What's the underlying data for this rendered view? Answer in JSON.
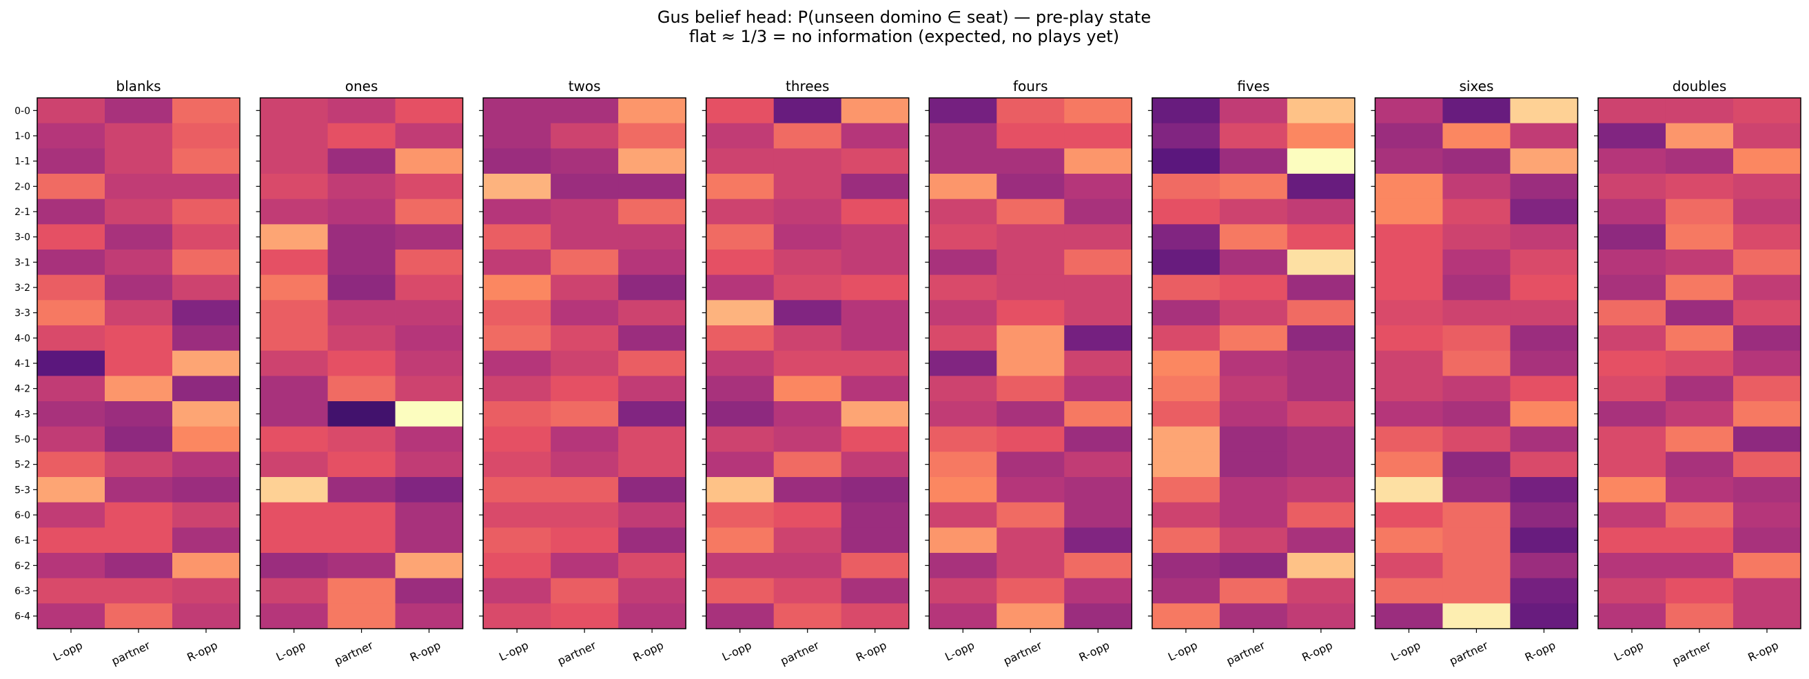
{
  "figure": {
    "title_line1": "Gus belief head: P(unseen domino ∈ seat) — pre-play state",
    "title_line2": "flat ≈ 1/3 = no information (expected, no plays yet)"
  },
  "colors": {
    "colormap": "magma",
    "frame": "#000000",
    "background": "#ffffff"
  },
  "chart_data": {
    "type": "heatmap",
    "colormap": "magma",
    "value_range": [
      0.15,
      0.55
    ],
    "rows": [
      "0-0",
      "1-0",
      "1-1",
      "2-0",
      "2-1",
      "3-0",
      "3-1",
      "3-2",
      "3-3",
      "4-0",
      "4-1",
      "4-2",
      "4-3",
      "5-0",
      "5-2",
      "5-3",
      "6-0",
      "6-1",
      "6-2",
      "6-3",
      "6-4"
    ],
    "columns": [
      "L-opp",
      "partner",
      "R-opp"
    ],
    "panels": [
      {
        "title": "blanks",
        "values": [
          [
            0.33,
            0.3,
            0.37
          ],
          [
            0.31,
            0.33,
            0.36
          ],
          [
            0.3,
            0.33,
            0.37
          ],
          [
            0.37,
            0.32,
            0.32
          ],
          [
            0.3,
            0.33,
            0.36
          ],
          [
            0.35,
            0.3,
            0.34
          ],
          [
            0.3,
            0.32,
            0.37
          ],
          [
            0.36,
            0.3,
            0.33
          ],
          [
            0.38,
            0.33,
            0.27
          ],
          [
            0.34,
            0.35,
            0.29
          ],
          [
            0.24,
            0.35,
            0.41
          ],
          [
            0.32,
            0.4,
            0.28
          ],
          [
            0.3,
            0.29,
            0.41
          ],
          [
            0.32,
            0.28,
            0.39
          ],
          [
            0.36,
            0.33,
            0.31
          ],
          [
            0.41,
            0.3,
            0.29
          ],
          [
            0.32,
            0.35,
            0.33
          ],
          [
            0.35,
            0.35,
            0.3
          ],
          [
            0.31,
            0.29,
            0.4
          ],
          [
            0.34,
            0.34,
            0.33
          ],
          [
            0.31,
            0.37,
            0.32
          ]
        ]
      },
      {
        "title": "ones",
        "values": [
          [
            0.33,
            0.32,
            0.35
          ],
          [
            0.33,
            0.35,
            0.32
          ],
          [
            0.33,
            0.29,
            0.4
          ],
          [
            0.34,
            0.32,
            0.34
          ],
          [
            0.32,
            0.31,
            0.37
          ],
          [
            0.41,
            0.29,
            0.3
          ],
          [
            0.35,
            0.29,
            0.36
          ],
          [
            0.38,
            0.28,
            0.34
          ],
          [
            0.36,
            0.32,
            0.32
          ],
          [
            0.36,
            0.33,
            0.31
          ],
          [
            0.33,
            0.35,
            0.32
          ],
          [
            0.3,
            0.37,
            0.33
          ],
          [
            0.3,
            0.22,
            0.48
          ],
          [
            0.35,
            0.34,
            0.31
          ],
          [
            0.33,
            0.35,
            0.32
          ],
          [
            0.44,
            0.29,
            0.27
          ],
          [
            0.35,
            0.35,
            0.3
          ],
          [
            0.35,
            0.35,
            0.3
          ],
          [
            0.29,
            0.3,
            0.41
          ],
          [
            0.33,
            0.38,
            0.29
          ],
          [
            0.31,
            0.38,
            0.31
          ]
        ]
      },
      {
        "title": "twos",
        "values": [
          [
            0.3,
            0.3,
            0.4
          ],
          [
            0.3,
            0.33,
            0.37
          ],
          [
            0.29,
            0.3,
            0.41
          ],
          [
            0.42,
            0.29,
            0.29
          ],
          [
            0.31,
            0.32,
            0.37
          ],
          [
            0.36,
            0.32,
            0.32
          ],
          [
            0.32,
            0.37,
            0.31
          ],
          [
            0.39,
            0.33,
            0.28
          ],
          [
            0.36,
            0.31,
            0.33
          ],
          [
            0.37,
            0.34,
            0.29
          ],
          [
            0.31,
            0.33,
            0.36
          ],
          [
            0.33,
            0.35,
            0.32
          ],
          [
            0.36,
            0.37,
            0.27
          ],
          [
            0.35,
            0.31,
            0.34
          ],
          [
            0.34,
            0.32,
            0.34
          ],
          [
            0.36,
            0.36,
            0.28
          ],
          [
            0.34,
            0.34,
            0.32
          ],
          [
            0.36,
            0.35,
            0.29
          ],
          [
            0.35,
            0.31,
            0.34
          ],
          [
            0.32,
            0.36,
            0.32
          ],
          [
            0.34,
            0.35,
            0.31
          ]
        ]
      },
      {
        "title": "threes",
        "values": [
          [
            0.35,
            0.25,
            0.4
          ],
          [
            0.32,
            0.37,
            0.31
          ],
          [
            0.33,
            0.33,
            0.34
          ],
          [
            0.38,
            0.33,
            0.29
          ],
          [
            0.33,
            0.32,
            0.35
          ],
          [
            0.37,
            0.31,
            0.32
          ],
          [
            0.35,
            0.33,
            0.32
          ],
          [
            0.31,
            0.34,
            0.35
          ],
          [
            0.42,
            0.27,
            0.31
          ],
          [
            0.36,
            0.33,
            0.31
          ],
          [
            0.32,
            0.34,
            0.34
          ],
          [
            0.3,
            0.39,
            0.31
          ],
          [
            0.28,
            0.31,
            0.41
          ],
          [
            0.33,
            0.32,
            0.35
          ],
          [
            0.31,
            0.37,
            0.32
          ],
          [
            0.43,
            0.29,
            0.28
          ],
          [
            0.36,
            0.35,
            0.29
          ],
          [
            0.38,
            0.33,
            0.29
          ],
          [
            0.32,
            0.32,
            0.36
          ],
          [
            0.36,
            0.34,
            0.3
          ],
          [
            0.3,
            0.36,
            0.34
          ]
        ]
      },
      {
        "title": "fours",
        "values": [
          [
            0.26,
            0.36,
            0.38
          ],
          [
            0.3,
            0.35,
            0.35
          ],
          [
            0.3,
            0.3,
            0.4
          ],
          [
            0.4,
            0.29,
            0.31
          ],
          [
            0.33,
            0.37,
            0.3
          ],
          [
            0.34,
            0.33,
            0.33
          ],
          [
            0.3,
            0.33,
            0.37
          ],
          [
            0.34,
            0.33,
            0.33
          ],
          [
            0.32,
            0.35,
            0.33
          ],
          [
            0.34,
            0.4,
            0.26
          ],
          [
            0.27,
            0.4,
            0.33
          ],
          [
            0.33,
            0.36,
            0.31
          ],
          [
            0.32,
            0.3,
            0.38
          ],
          [
            0.36,
            0.35,
            0.29
          ],
          [
            0.38,
            0.3,
            0.32
          ],
          [
            0.39,
            0.31,
            0.3
          ],
          [
            0.33,
            0.37,
            0.3
          ],
          [
            0.4,
            0.33,
            0.27
          ],
          [
            0.3,
            0.33,
            0.37
          ],
          [
            0.33,
            0.36,
            0.31
          ],
          [
            0.31,
            0.4,
            0.29
          ]
        ]
      },
      {
        "title": "fives",
        "values": [
          [
            0.25,
            0.32,
            0.43
          ],
          [
            0.27,
            0.34,
            0.39
          ],
          [
            0.24,
            0.29,
            0.47
          ],
          [
            0.37,
            0.38,
            0.25
          ],
          [
            0.35,
            0.33,
            0.32
          ],
          [
            0.27,
            0.38,
            0.35
          ],
          [
            0.25,
            0.3,
            0.45
          ],
          [
            0.36,
            0.35,
            0.29
          ],
          [
            0.3,
            0.33,
            0.37
          ],
          [
            0.34,
            0.38,
            0.28
          ],
          [
            0.39,
            0.31,
            0.3
          ],
          [
            0.38,
            0.32,
            0.3
          ],
          [
            0.36,
            0.31,
            0.33
          ],
          [
            0.41,
            0.29,
            0.3
          ],
          [
            0.41,
            0.29,
            0.3
          ],
          [
            0.37,
            0.31,
            0.32
          ],
          [
            0.33,
            0.31,
            0.36
          ],
          [
            0.37,
            0.33,
            0.3
          ],
          [
            0.29,
            0.28,
            0.43
          ],
          [
            0.3,
            0.37,
            0.33
          ],
          [
            0.38,
            0.3,
            0.32
          ]
        ]
      },
      {
        "title": "sixes",
        "values": [
          [
            0.31,
            0.25,
            0.44
          ],
          [
            0.29,
            0.39,
            0.32
          ],
          [
            0.3,
            0.29,
            0.41
          ],
          [
            0.39,
            0.32,
            0.29
          ],
          [
            0.39,
            0.34,
            0.27
          ],
          [
            0.35,
            0.33,
            0.32
          ],
          [
            0.35,
            0.31,
            0.34
          ],
          [
            0.35,
            0.3,
            0.35
          ],
          [
            0.34,
            0.33,
            0.33
          ],
          [
            0.35,
            0.36,
            0.29
          ],
          [
            0.33,
            0.37,
            0.3
          ],
          [
            0.33,
            0.32,
            0.35
          ],
          [
            0.31,
            0.3,
            0.39
          ],
          [
            0.36,
            0.34,
            0.3
          ],
          [
            0.38,
            0.28,
            0.34
          ],
          [
            0.45,
            0.29,
            0.26
          ],
          [
            0.35,
            0.37,
            0.28
          ],
          [
            0.38,
            0.37,
            0.25
          ],
          [
            0.34,
            0.37,
            0.29
          ],
          [
            0.37,
            0.37,
            0.26
          ],
          [
            0.29,
            0.46,
            0.25
          ]
        ]
      },
      {
        "title": "doubles",
        "values": [
          [
            0.33,
            0.33,
            0.34
          ],
          [
            0.27,
            0.4,
            0.33
          ],
          [
            0.31,
            0.3,
            0.39
          ],
          [
            0.33,
            0.34,
            0.33
          ],
          [
            0.31,
            0.37,
            0.32
          ],
          [
            0.28,
            0.38,
            0.34
          ],
          [
            0.31,
            0.32,
            0.37
          ],
          [
            0.3,
            0.38,
            0.32
          ],
          [
            0.37,
            0.29,
            0.34
          ],
          [
            0.33,
            0.38,
            0.29
          ],
          [
            0.35,
            0.34,
            0.31
          ],
          [
            0.34,
            0.3,
            0.36
          ],
          [
            0.3,
            0.32,
            0.38
          ],
          [
            0.34,
            0.38,
            0.28
          ],
          [
            0.34,
            0.3,
            0.36
          ],
          [
            0.39,
            0.31,
            0.3
          ],
          [
            0.32,
            0.37,
            0.31
          ],
          [
            0.35,
            0.35,
            0.3
          ],
          [
            0.31,
            0.31,
            0.38
          ],
          [
            0.33,
            0.35,
            0.32
          ],
          [
            0.31,
            0.37,
            0.32
          ]
        ]
      }
    ]
  }
}
